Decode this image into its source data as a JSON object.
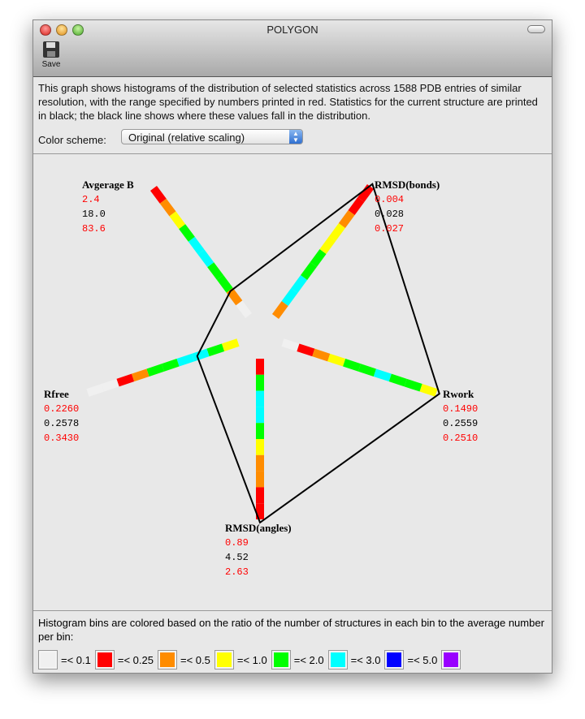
{
  "window": {
    "title": "POLYGON",
    "toolbar": {
      "save_label": "Save",
      "save_icon": "floppy-disk-icon"
    }
  },
  "description": "This graph shows histograms of the distribution of selected statistics across 1588 PDB entries of similar resolution, with the range specified by numbers printed in red.  Statistics for the current structure are printed in black; the black line shows where these values fall in the distribution.",
  "color_scheme": {
    "label": "Color scheme:",
    "selected": "Original (relative scaling)"
  },
  "axes": [
    {
      "name": "Avgerage B",
      "min": "2.4",
      "value": "18.0",
      "max": "83.6",
      "bins": [
        "white",
        "orange",
        "green",
        "green",
        "cyan",
        "cyan",
        "green",
        "yellow",
        "orange",
        "red"
      ]
    },
    {
      "name": "RMSD(bonds)",
      "min": "0.004",
      "value": "0.028",
      "max": "0.027",
      "bins": [
        "orange",
        "cyan",
        "cyan",
        "green",
        "green",
        "yellow",
        "yellow",
        "orange",
        "red",
        "red"
      ]
    },
    {
      "name": "Rwork",
      "min": "0.1490",
      "value": "0.2559",
      "max": "0.2510",
      "bins": [
        "white",
        "red",
        "orange",
        "yellow",
        "green",
        "green",
        "cyan",
        "green",
        "green",
        "yellow"
      ]
    },
    {
      "name": "RMSD(angles)",
      "min": "0.89",
      "value": "4.52",
      "max": "2.63",
      "bins": [
        "red",
        "green",
        "cyan",
        "cyan",
        "green",
        "yellow",
        "orange",
        "orange",
        "red",
        "red"
      ]
    },
    {
      "name": "Rfree",
      "min": "0.2260",
      "value": "0.2578",
      "max": "0.3430",
      "bins": [
        "yellow",
        "green",
        "cyan",
        "cyan",
        "green",
        "green",
        "orange",
        "red",
        "white",
        "white"
      ]
    }
  ],
  "legend": {
    "text": "Histogram bins are colored based on the ratio of the number of structures in each bin to the average number per bin:",
    "items": [
      {
        "key": "white",
        "color": "#f0f0f0",
        "label": "=< 0.1"
      },
      {
        "key": "red",
        "color": "#ff0000",
        "label": "=< 0.25"
      },
      {
        "key": "orange",
        "color": "#ff8c00",
        "label": "=< 0.5"
      },
      {
        "key": "yellow",
        "color": "#ffff00",
        "label": "=< 1.0"
      },
      {
        "key": "green",
        "color": "#00ff00",
        "label": "=< 2.0"
      },
      {
        "key": "cyan",
        "color": "#00ffff",
        "label": "=< 3.0"
      },
      {
        "key": "blue",
        "color": "#0000ff",
        "label": "=< 5.0"
      },
      {
        "key": "purple",
        "color": "#9900ff",
        "label": ""
      }
    ]
  }
}
